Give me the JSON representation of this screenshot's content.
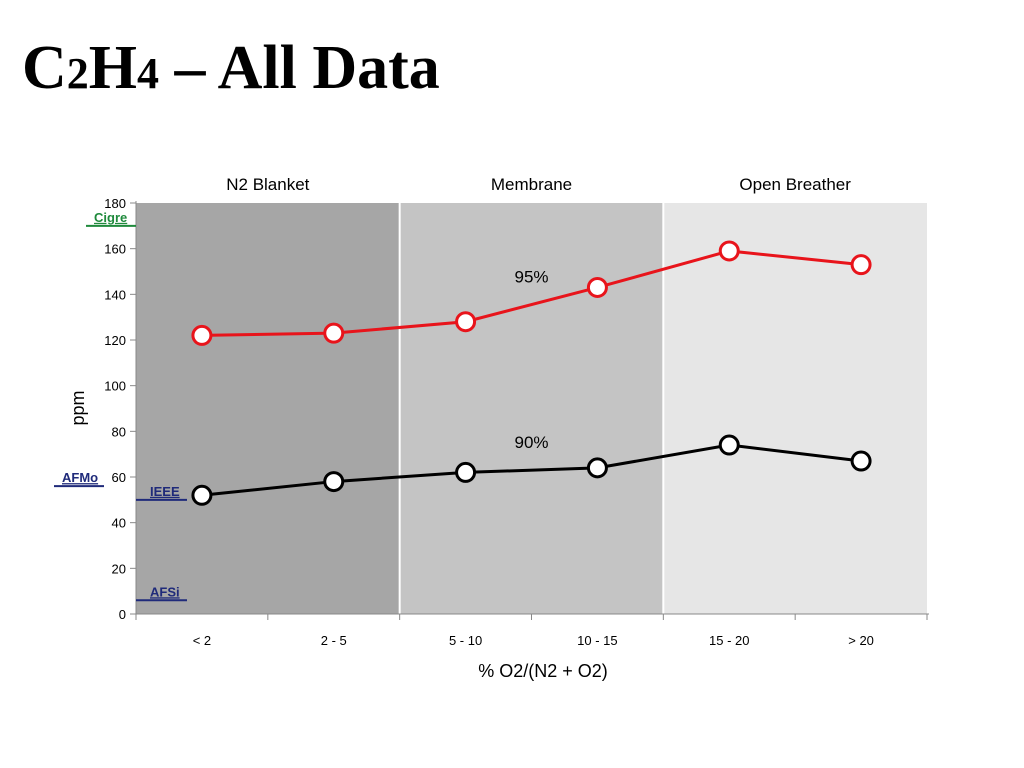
{
  "slide": {
    "title_parts": [
      "C",
      "2",
      "H",
      "4",
      " – All Data"
    ]
  },
  "chart_data": {
    "type": "line",
    "title": "",
    "xlabel": "% O2/(N2 + O2)",
    "ylabel": "ppm",
    "categories": [
      "< 2",
      "2 - 5",
      "5 - 10",
      "10 - 15",
      "15 - 20",
      "> 20"
    ],
    "ylim": [
      0,
      180
    ],
    "yticks": [
      0,
      20,
      40,
      60,
      80,
      100,
      120,
      140,
      160,
      180
    ],
    "grid": false,
    "legend": "none",
    "regions": [
      {
        "label": "N2 Blanket",
        "from": 0,
        "to": 2,
        "color": "#a6a6a6"
      },
      {
        "label": "Membrane",
        "from": 2,
        "to": 4,
        "color": "#c4c4c4"
      },
      {
        "label": "Open Breather",
        "from": 4,
        "to": 6,
        "color": "#e6e6e6"
      }
    ],
    "series": [
      {
        "name": "95%",
        "values": [
          122,
          123,
          128,
          143,
          159,
          153
        ],
        "color": "#e8141b",
        "label_after_index": 2
      },
      {
        "name": "90%",
        "values": [
          52,
          58,
          62,
          64,
          74,
          67
        ],
        "color": "#000000",
        "label_after_index": 2
      }
    ],
    "reference_lines": [
      {
        "label": "Cigre",
        "value": 170,
        "color": "#1f8a3c"
      },
      {
        "label": "AFMo",
        "value": 56,
        "color": "#1f2a7a"
      },
      {
        "label": "IEEE",
        "value": 50,
        "color": "#1f2a7a"
      },
      {
        "label": "AFSi",
        "value": 6,
        "color": "#1f2a7a"
      }
    ]
  }
}
